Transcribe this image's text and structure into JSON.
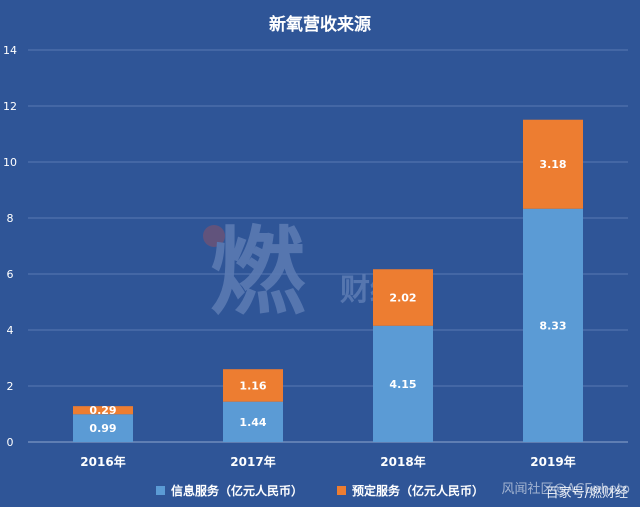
{
  "chart_data": {
    "type": "bar",
    "stacked": true,
    "title": "新氧营收来源",
    "categories": [
      "2016年",
      "2017年",
      "2018年",
      "2019年"
    ],
    "series": [
      {
        "name": "信息服务（亿元人民币）",
        "values": [
          0.99,
          1.44,
          4.15,
          8.33
        ],
        "color": "#5b9bd5"
      },
      {
        "name": "预定服务（亿元人民币）",
        "values": [
          0.29,
          1.16,
          2.02,
          3.18
        ],
        "color": "#ed7d31"
      }
    ],
    "ylim": [
      0,
      14
    ],
    "yticks": [
      0,
      2,
      4,
      6,
      8,
      10,
      12,
      14
    ],
    "grid": true,
    "legend": "bottom",
    "xlabel": "",
    "ylabel": ""
  },
  "watermark": {
    "logo_text": "燃财经"
  },
  "overlays": {
    "credit_a": "风闻社区@ACEphoto",
    "credit_b": "百家号/燃财经"
  },
  "colors": {
    "background": "#2f5597",
    "grid": "#5a79b3",
    "text": "#ffffff"
  }
}
